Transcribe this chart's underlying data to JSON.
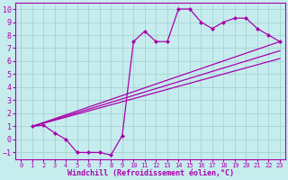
{
  "xlabel": "Windchill (Refroidissement éolien,°C)",
  "xlim": [
    -0.5,
    23.5
  ],
  "ylim": [
    -1.5,
    10.5
  ],
  "xticks": [
    0,
    1,
    2,
    3,
    4,
    5,
    6,
    7,
    8,
    9,
    10,
    11,
    12,
    13,
    14,
    15,
    16,
    17,
    18,
    19,
    20,
    21,
    22,
    23
  ],
  "yticks": [
    -1,
    0,
    1,
    2,
    3,
    4,
    5,
    6,
    7,
    8,
    9,
    10
  ],
  "bg_color": "#c6ecee",
  "line_color": "#aa00aa",
  "grid_color": "#9ecece",
  "series_x": [
    1,
    2,
    3,
    4,
    5,
    6,
    7,
    8,
    9,
    10,
    11,
    12,
    13,
    14,
    15,
    16,
    17,
    18,
    19,
    20,
    21,
    22,
    23
  ],
  "series_y": [
    1.0,
    1.1,
    0.5,
    0.0,
    -1.0,
    -1.0,
    -1.0,
    -1.2,
    0.3,
    7.5,
    8.3,
    7.5,
    7.5,
    10.0,
    10.0,
    9.0,
    8.5,
    9.0,
    9.3,
    9.3,
    8.5,
    8.0,
    7.5
  ],
  "line1_x": [
    1,
    23
  ],
  "line1_y": [
    1.0,
    7.5
  ],
  "line2_x": [
    1,
    23
  ],
  "line2_y": [
    1.0,
    6.8
  ],
  "line3_x": [
    1,
    23
  ],
  "line3_y": [
    1.0,
    6.2
  ],
  "tick_fontsize": 6,
  "xlabel_fontsize": 6
}
